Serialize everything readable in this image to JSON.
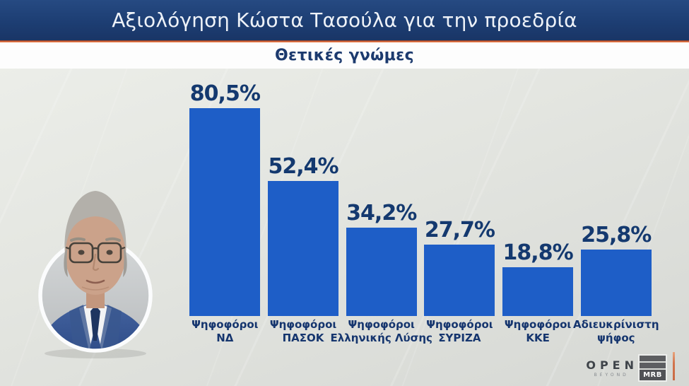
{
  "header": {
    "title": "Αξιολόγηση Κώστα Τασούλα για την προεδρία"
  },
  "subtitle": "Θετικές γνώμες",
  "chart_data": {
    "type": "bar",
    "title": "Αξιολόγηση Κώστα Τασούλα για την προεδρία",
    "subtitle": "Θετικές γνώμες",
    "categories": [
      "Ψηφοφόροι ΝΔ",
      "Ψηφοφόροι ΠΑΣΟΚ",
      "Ψηφοφόροι Ελληνικής Λύσης",
      "Ψηφοφόροι ΣΥΡΙΖΑ",
      "Ψηφοφόροι ΚΚΕ",
      "Αδιευκρίνιστη ψήφος"
    ],
    "values": [
      80.5,
      52.4,
      34.2,
      27.7,
      18.8,
      25.8
    ],
    "value_labels": [
      "80,5%",
      "52,4%",
      "34,2%",
      "27,7%",
      "18,8%",
      "25,8%"
    ],
    "label_lines": [
      [
        "Ψηφοφόροι",
        "ΝΔ"
      ],
      [
        "Ψηφοφόροι",
        "ΠΑΣΟΚ"
      ],
      [
        "Ψηφοφόροι",
        "Ελληνικής Λύσης"
      ],
      [
        "Ψηφοφόροι",
        "ΣΥΡΙΖΑ"
      ],
      [
        "Ψηφοφόροι",
        "ΚΚΕ"
      ],
      [
        "Αδιευκρίνιστη",
        "ψήφος"
      ]
    ],
    "bar_color": "#1e5ec7",
    "value_label_color": "#14396f",
    "xlabel": "",
    "ylabel": "",
    "ylim": [
      0,
      100
    ],
    "grid": false,
    "legend": "none"
  },
  "colors": {
    "header_navy": "#1d3e73",
    "accent_orange": "#e4703f",
    "text_navy": "#15356e",
    "bar_blue": "#1e5ec7",
    "panel_gray": "#e4e6e1"
  },
  "icons": {
    "portrait": "man-in-suit-circular-portrait"
  },
  "branding": {
    "channel": "OPEN",
    "channel_sub": "BEYOND",
    "agency": "MRB"
  }
}
